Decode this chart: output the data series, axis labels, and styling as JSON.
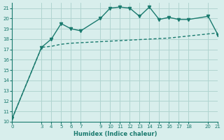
{
  "xlabel": "Humidex (Indice chaleur)",
  "bg_color": "#d8eeec",
  "grid_color": "#b0d4d0",
  "line_color": "#1a7a6e",
  "line1_x": [
    0,
    3,
    4,
    5,
    6,
    7,
    9,
    10,
    11,
    12,
    13,
    14,
    15,
    16,
    17,
    18,
    20,
    21
  ],
  "line1_y": [
    10.3,
    17.2,
    18.0,
    19.5,
    19.0,
    18.8,
    20.0,
    21.0,
    21.1,
    21.0,
    20.2,
    21.1,
    19.9,
    20.1,
    19.9,
    19.9,
    20.2,
    18.4
  ],
  "line2_x": [
    0,
    3,
    4,
    5,
    6,
    7,
    9,
    10,
    11,
    12,
    13,
    14,
    15,
    16,
    17,
    18,
    20,
    21
  ],
  "line2_y": [
    10.3,
    17.2,
    17.3,
    17.5,
    17.6,
    17.65,
    17.75,
    17.8,
    17.85,
    17.9,
    17.95,
    18.0,
    18.05,
    18.1,
    18.2,
    18.3,
    18.5,
    18.6
  ],
  "xlim": [
    0,
    21
  ],
  "ylim": [
    10,
    21.5
  ],
  "yticks": [
    10,
    11,
    12,
    13,
    14,
    15,
    16,
    17,
    18,
    19,
    20,
    21
  ],
  "xticks": [
    0,
    3,
    4,
    5,
    6,
    7,
    9,
    10,
    11,
    12,
    13,
    14,
    15,
    16,
    17,
    18,
    20,
    21
  ]
}
